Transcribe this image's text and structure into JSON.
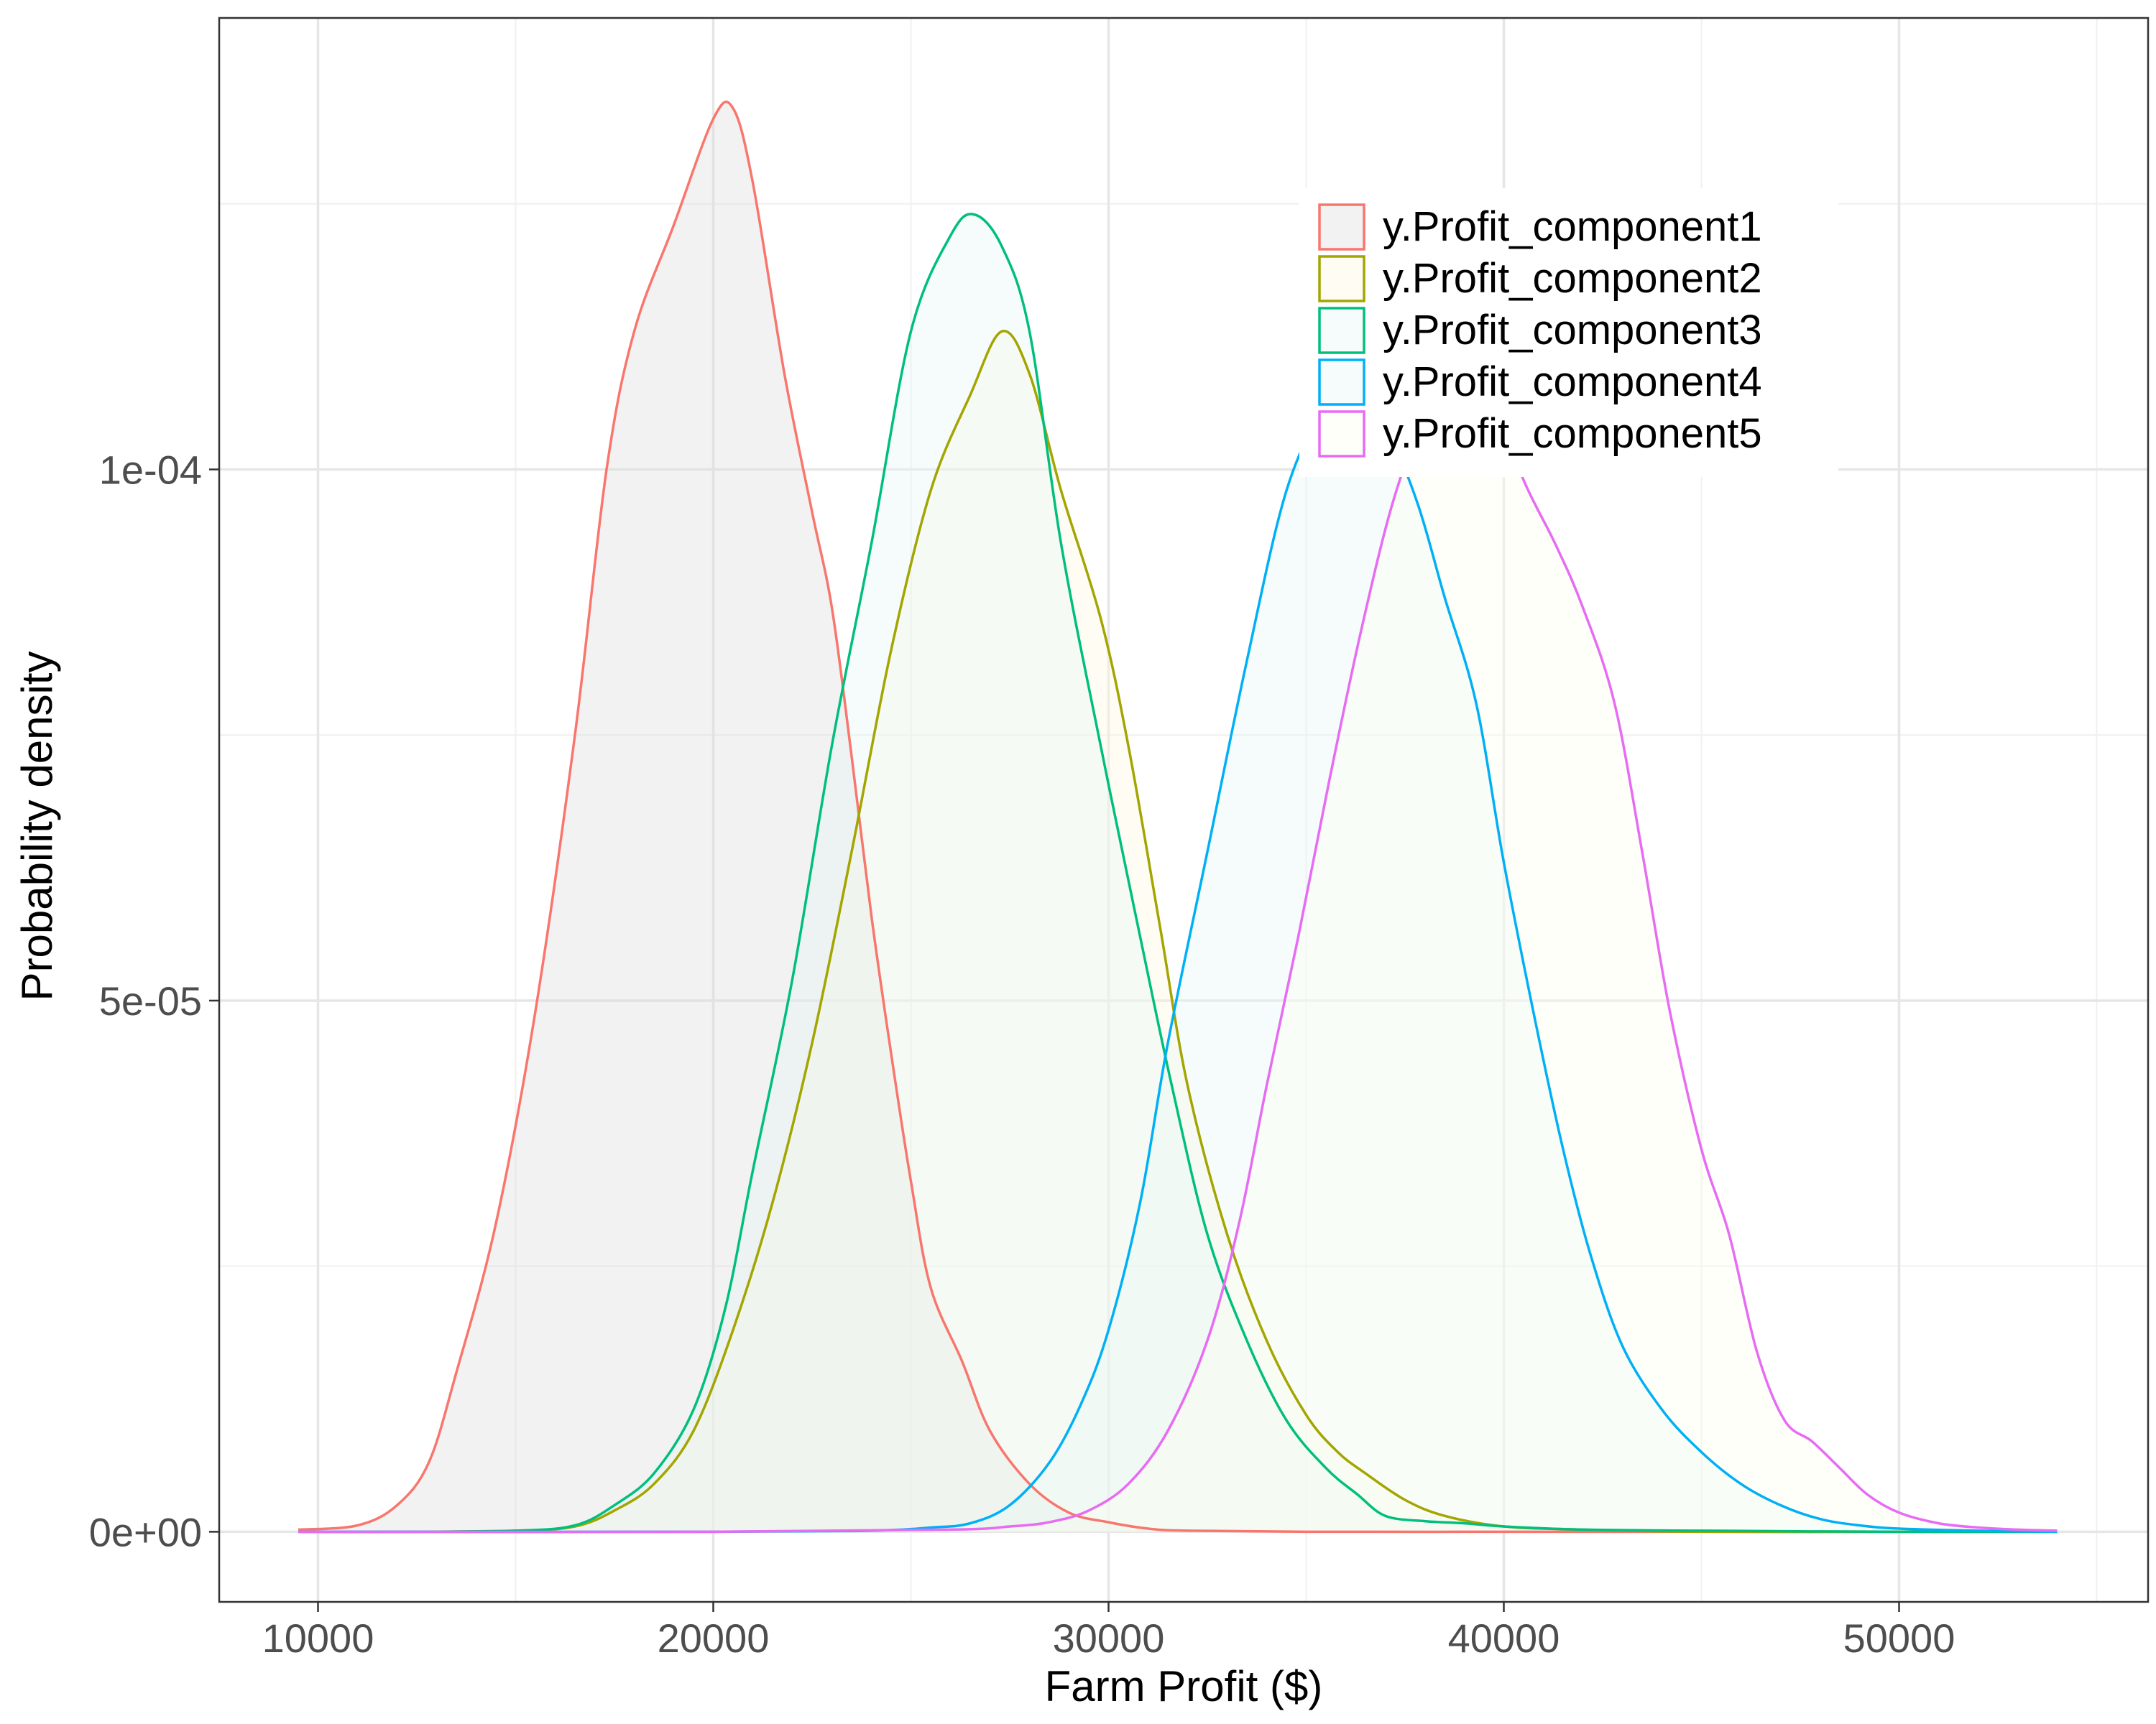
{
  "chart_data": {
    "type": "area",
    "title": "",
    "xlabel": "Farm Profit ($)",
    "ylabel": "Probability density",
    "xlim": [
      7500,
      56300
    ],
    "ylim": [
      -6.6e-06,
      0.0001425
    ],
    "x_ticks": [
      10000,
      20000,
      30000,
      40000,
      50000
    ],
    "x_tick_labels": [
      "10000",
      "20000",
      "30000",
      "40000",
      "50000"
    ],
    "y_ticks": [
      0,
      5e-05,
      0.0001
    ],
    "y_tick_labels": [
      "0e+00",
      "5e-05",
      "1e-04"
    ],
    "grid": true,
    "legend_position": "top-right",
    "series": [
      {
        "name": "y.Profit_component1",
        "color": "#F8766D",
        "fill": "#D9D9D9",
        "points": [
          [
            9500,
            2e-07
          ],
          [
            11000,
            6e-07
          ],
          [
            12000,
            2.5e-06
          ],
          [
            12800,
            6.5e-06
          ],
          [
            13500,
            1.5e-05
          ],
          [
            14500,
            2.9e-05
          ],
          [
            15500,
            4.9e-05
          ],
          [
            16500,
            7.5e-05
          ],
          [
            17300,
            0.0001
          ],
          [
            18000,
            0.000113
          ],
          [
            19000,
            0.000123
          ],
          [
            20000,
            0.000133
          ],
          [
            20500,
            0.000134
          ],
          [
            21000,
            0.000127
          ],
          [
            21800,
            0.000109
          ],
          [
            22500,
            9.6e-05
          ],
          [
            23000,
            8.7e-05
          ],
          [
            23500,
            7.3e-05
          ],
          [
            24000,
            5.8e-05
          ],
          [
            24500,
            4.5e-05
          ],
          [
            25000,
            3.3e-05
          ],
          [
            25500,
            2.3e-05
          ],
          [
            26300,
            1.6e-05
          ],
          [
            27000,
            9.5e-06
          ],
          [
            28000,
            4.5e-06
          ],
          [
            29000,
            1.8e-06
          ],
          [
            30000,
            9e-07
          ],
          [
            31000,
            3e-07
          ],
          [
            32000,
            1e-07
          ],
          [
            35000,
            0
          ],
          [
            40000,
            0
          ],
          [
            45000,
            0
          ],
          [
            50000,
            0
          ],
          [
            54000,
            0
          ]
        ]
      },
      {
        "name": "y.Profit_component2",
        "color": "#A3A500",
        "fill": "#FFF7DC",
        "points": [
          [
            9500,
            0
          ],
          [
            12000,
            0
          ],
          [
            15000,
            1e-07
          ],
          [
            16500,
            5e-07
          ],
          [
            17500,
            2e-06
          ],
          [
            18500,
            4.5e-06
          ],
          [
            19500,
            9.5e-06
          ],
          [
            20500,
            1.9e-05
          ],
          [
            21500,
            3.1e-05
          ],
          [
            22500,
            4.6e-05
          ],
          [
            23500,
            6.4e-05
          ],
          [
            24500,
            8.3e-05
          ],
          [
            25500,
            9.8e-05
          ],
          [
            26500,
            0.000107
          ],
          [
            27300,
            0.000113
          ],
          [
            28000,
            0.000109
          ],
          [
            28800,
            9.8e-05
          ],
          [
            29800,
            8.6e-05
          ],
          [
            30500,
            7.4e-05
          ],
          [
            31300,
            5.7e-05
          ],
          [
            32000,
            4.2e-05
          ],
          [
            33000,
            2.8e-05
          ],
          [
            34000,
            1.8e-05
          ],
          [
            35000,
            1.1e-05
          ],
          [
            35800,
            7.5e-06
          ],
          [
            36500,
            5.5e-06
          ],
          [
            37500,
            3e-06
          ],
          [
            38500,
            1.5e-06
          ],
          [
            40000,
            5e-07
          ],
          [
            42000,
            2e-07
          ],
          [
            45000,
            0
          ],
          [
            50000,
            0
          ],
          [
            54000,
            0
          ]
        ]
      },
      {
        "name": "y.Profit_component3",
        "color": "#00BF7D",
        "fill": "#E6F5F5",
        "points": [
          [
            9500,
            0
          ],
          [
            12000,
            0
          ],
          [
            15000,
            1e-07
          ],
          [
            16500,
            6e-07
          ],
          [
            17500,
            2.5e-06
          ],
          [
            18500,
            5.5e-06
          ],
          [
            19500,
            1.15e-05
          ],
          [
            20300,
            2.1e-05
          ],
          [
            21000,
            3.4e-05
          ],
          [
            22000,
            5.2e-05
          ],
          [
            23000,
            7.4e-05
          ],
          [
            24000,
            9.3e-05
          ],
          [
            25000,
            0.000113
          ],
          [
            26000,
            0.000122
          ],
          [
            26600,
            0.000124
          ],
          [
            27300,
            0.000121
          ],
          [
            28000,
            0.000113
          ],
          [
            28800,
            9.3e-05
          ],
          [
            29800,
            7.4e-05
          ],
          [
            30800,
            5.6e-05
          ],
          [
            31600,
            4.2e-05
          ],
          [
            32500,
            2.8e-05
          ],
          [
            33500,
            1.8e-05
          ],
          [
            34500,
            1.05e-05
          ],
          [
            35500,
            6e-06
          ],
          [
            36300,
            3.5e-06
          ],
          [
            37000,
            1.5e-06
          ],
          [
            38000,
            1e-06
          ],
          [
            39000,
            8e-07
          ],
          [
            40000,
            5e-07
          ],
          [
            42000,
            2e-07
          ],
          [
            45000,
            1e-07
          ],
          [
            50000,
            0
          ],
          [
            54000,
            0
          ]
        ]
      },
      {
        "name": "y.Profit_component4",
        "color": "#00B0F6",
        "fill": "#E6F6F4",
        "points": [
          [
            9500,
            0
          ],
          [
            20000,
            0
          ],
          [
            24000,
            1e-07
          ],
          [
            25500,
            4e-07
          ],
          [
            26500,
            8e-07
          ],
          [
            27500,
            2.5e-06
          ],
          [
            28500,
            6.5e-06
          ],
          [
            29300,
            1.2e-05
          ],
          [
            30000,
            1.9e-05
          ],
          [
            30800,
            3.1e-05
          ],
          [
            31500,
            4.6e-05
          ],
          [
            32500,
            6.4e-05
          ],
          [
            33500,
            8.2e-05
          ],
          [
            34500,
            9.8e-05
          ],
          [
            35500,
            0.000106
          ],
          [
            36200,
            0.000107
          ],
          [
            37000,
            0.000104
          ],
          [
            37800,
            9.7e-05
          ],
          [
            38500,
            8.8e-05
          ],
          [
            39300,
            7.8e-05
          ],
          [
            40000,
            6.3e-05
          ],
          [
            40800,
            4.8e-05
          ],
          [
            41500,
            3.6e-05
          ],
          [
            42200,
            2.6e-05
          ],
          [
            43000,
            1.75e-05
          ],
          [
            44000,
            1.15e-05
          ],
          [
            45000,
            7.5e-06
          ],
          [
            46000,
            4.5e-06
          ],
          [
            47000,
            2.5e-06
          ],
          [
            48000,
            1.2e-06
          ],
          [
            49000,
            6e-07
          ],
          [
            50000,
            3e-07
          ],
          [
            52000,
            1e-07
          ],
          [
            54000,
            0
          ]
        ]
      },
      {
        "name": "y.Profit_component5",
        "color": "#E76BF3",
        "fill": "#FFFEF0",
        "points": [
          [
            9500,
            0
          ],
          [
            20000,
            0
          ],
          [
            26000,
            2e-07
          ],
          [
            27500,
            5e-07
          ],
          [
            28500,
            9e-07
          ],
          [
            29500,
            2e-06
          ],
          [
            30500,
            4.5e-06
          ],
          [
            31500,
            9.5e-06
          ],
          [
            32500,
            1.8e-05
          ],
          [
            33300,
            2.9e-05
          ],
          [
            34000,
            4.2e-05
          ],
          [
            34800,
            5.6e-05
          ],
          [
            35600,
            7.1e-05
          ],
          [
            36400,
            8.5e-05
          ],
          [
            37200,
            9.7e-05
          ],
          [
            38000,
            0.000105
          ],
          [
            38800,
            0.000109
          ],
          [
            39700,
            0.000107
          ],
          [
            40500,
            9.9e-05
          ],
          [
            41300,
            9.3e-05
          ],
          [
            42000,
            8.7e-05
          ],
          [
            42800,
            7.8e-05
          ],
          [
            43500,
            6.4e-05
          ],
          [
            44200,
            4.9e-05
          ],
          [
            45000,
            3.6e-05
          ],
          [
            45700,
            2.8e-05
          ],
          [
            46400,
            1.7e-05
          ],
          [
            47100,
            1.05e-05
          ],
          [
            47800,
            8.5e-06
          ],
          [
            48500,
            6e-06
          ],
          [
            49200,
            3.5e-06
          ],
          [
            50000,
            1.8e-06
          ],
          [
            51000,
            8e-07
          ],
          [
            52000,
            4e-07
          ],
          [
            53000,
            2e-07
          ],
          [
            54000,
            1e-07
          ]
        ]
      }
    ]
  }
}
